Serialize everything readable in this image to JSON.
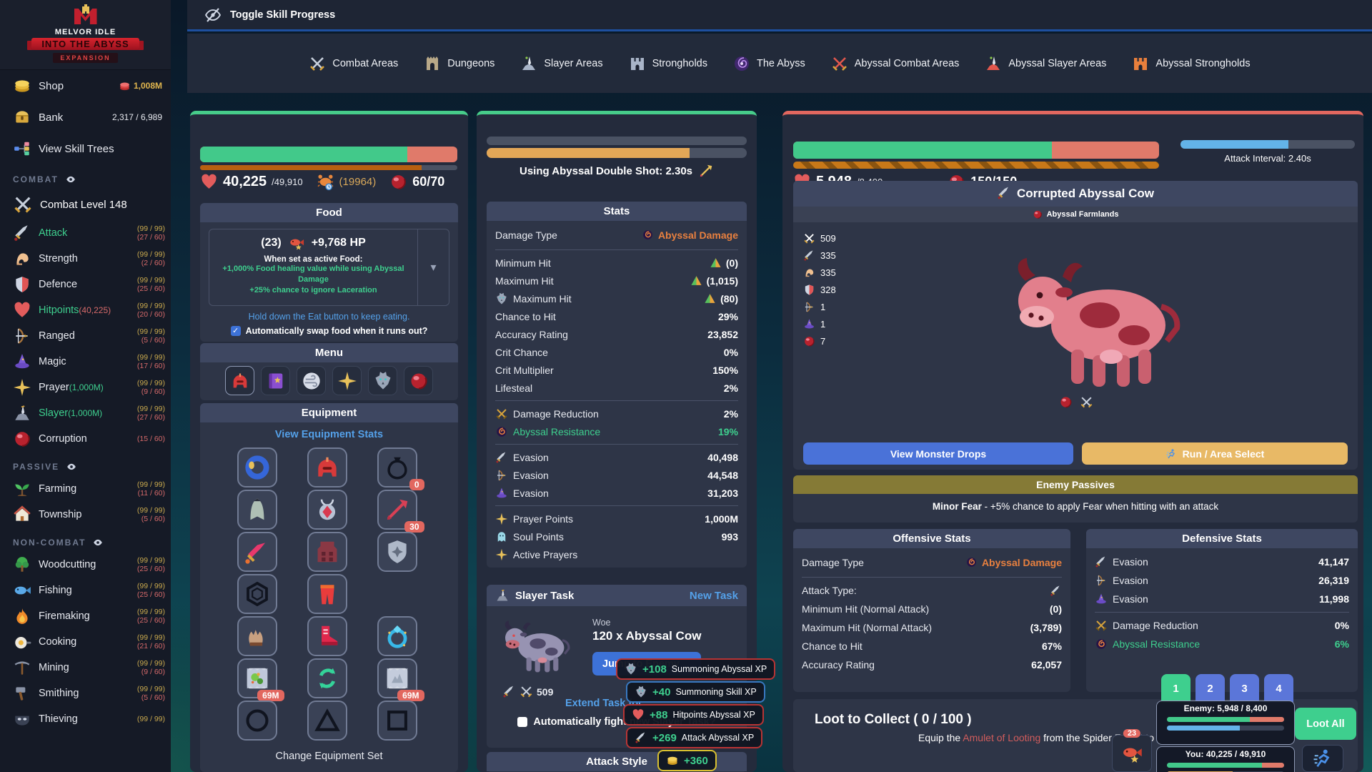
{
  "colors": {
    "accent_green": "#3ecf8e",
    "accent_red": "#e2675f",
    "accent_blue": "#5b76d9",
    "link_blue": "#54a0e8",
    "gold": "#c9a94e",
    "abyssal_orange": "#e8803f"
  },
  "topbar": {
    "toggle_label": "Toggle Skill Progress"
  },
  "nav": {
    "items": [
      {
        "icon": "i-swords",
        "cls": "c-silver",
        "label": "Combat Areas"
      },
      {
        "icon": "i-dungeon",
        "cls": "c-tan",
        "label": "Dungeons"
      },
      {
        "icon": "i-slayerarea",
        "cls": "c-steel",
        "label": "Slayer Areas"
      },
      {
        "icon": "i-castle",
        "cls": "c-steel",
        "label": "Strongholds"
      },
      {
        "icon": "i-vortex",
        "cls": "c-steel",
        "label": "The Abyss"
      },
      {
        "icon": "i-swords",
        "cls": "c-red",
        "label": "Abyssal Combat Areas"
      },
      {
        "icon": "i-slayerarea",
        "cls": "c-red",
        "label": "Abyssal Slayer Areas"
      },
      {
        "icon": "i-castle",
        "cls": "c-orange",
        "label": "Abyssal Strongholds"
      }
    ]
  },
  "sidebar": {
    "logo": {
      "title": "MELVOR IDLE",
      "banner": "INTO THE ABYSS",
      "badge": "EXPANSION"
    },
    "shop": {
      "label": "Shop",
      "value": "1,008M"
    },
    "bank": {
      "label": "Bank",
      "value": "2,317 / 6,989"
    },
    "skill_trees": {
      "label": "View Skill Trees"
    },
    "combat_header": "COMBAT",
    "combat_level": "Combat Level 148",
    "combat_items": [
      {
        "icon": "i-sword",
        "label": "Attack",
        "label_cls": "grn-t",
        "suffix": "",
        "suffix_cls": "",
        "lv": "(99 / 99)",
        "sub": "(27 / 60)"
      },
      {
        "icon": "i-muscle",
        "label": "Strength",
        "label_cls": "",
        "suffix": "",
        "suffix_cls": "",
        "lv": "(99 / 99)",
        "sub": "(2 / 60)"
      },
      {
        "icon": "i-shield",
        "label": "Defence",
        "label_cls": "",
        "suffix": "",
        "suffix_cls": "",
        "lv": "(99 / 99)",
        "sub": "(25 / 60)"
      },
      {
        "icon": "i-heart",
        "label": "Hitpoints",
        "label_cls": "grn-t",
        "suffix": "(40,225)",
        "suffix_cls": "red",
        "lv": "(99 / 99)",
        "sub": "(20 / 60)"
      },
      {
        "icon": "i-bow",
        "label": "Ranged",
        "label_cls": "",
        "suffix": "",
        "suffix_cls": "",
        "lv": "(99 / 99)",
        "sub": "(5 / 60)"
      },
      {
        "icon": "i-hat",
        "label": "Magic",
        "label_cls": "",
        "suffix": "",
        "suffix_cls": "",
        "lv": "(99 / 99)",
        "sub": "(17 / 60)"
      },
      {
        "icon": "i-star4",
        "label": "Prayer",
        "label_cls": "",
        "suffix": "(1,000M)",
        "suffix_cls": "grn",
        "lv": "(99 / 99)",
        "sub": "(9 / 60)"
      },
      {
        "icon": "i-slayer",
        "label": "Slayer",
        "label_cls": "grn-t",
        "suffix": "(1,000M)",
        "suffix_cls": "grn",
        "lv": "(99 / 99)",
        "sub": "(27 / 60)"
      },
      {
        "icon": "i-orb",
        "label": "Corruption",
        "label_cls": "",
        "suffix": "",
        "suffix_cls": "",
        "lv": "",
        "sub": "(15 / 60)"
      }
    ],
    "passive_header": "PASSIVE",
    "passive_items": [
      {
        "icon": "i-sprout",
        "label": "Farming",
        "label_cls": "",
        "suffix": "",
        "suffix_cls": "",
        "lv": "(99 / 99)",
        "sub": "(11 / 60)"
      },
      {
        "icon": "i-house",
        "label": "Township",
        "label_cls": "",
        "suffix": "",
        "suffix_cls": "",
        "lv": "(99 / 99)",
        "sub": "(5 / 60)"
      }
    ],
    "noncombat_header": "NON-COMBAT",
    "noncombat_items": [
      {
        "icon": "i-tree",
        "label": "Woodcutting",
        "label_cls": "",
        "suffix": "",
        "suffix_cls": "",
        "lv": "(99 / 99)",
        "sub": "(25 / 60)"
      },
      {
        "icon": "i-fishb",
        "label": "Fishing",
        "label_cls": "",
        "suffix": "",
        "suffix_cls": "",
        "lv": "(99 / 99)",
        "sub": "(25 / 60)"
      },
      {
        "icon": "i-flame",
        "label": "Firemaking",
        "label_cls": "",
        "suffix": "",
        "suffix_cls": "",
        "lv": "(99 / 99)",
        "sub": "(25 / 60)"
      },
      {
        "icon": "i-pan",
        "label": "Cooking",
        "label_cls": "",
        "suffix": "",
        "suffix_cls": "",
        "lv": "(99 / 99)",
        "sub": "(21 / 60)"
      },
      {
        "icon": "i-pick",
        "label": "Mining",
        "label_cls": "",
        "suffix": "",
        "suffix_cls": "",
        "lv": "(99 / 99)",
        "sub": "(9 / 60)"
      },
      {
        "icon": "i-hammer",
        "label": "Smithing",
        "label_cls": "",
        "suffix": "",
        "suffix_cls": "",
        "lv": "(99 / 99)",
        "sub": "(5 / 60)"
      },
      {
        "icon": "i-mask",
        "label": "Thieving",
        "label_cls": "",
        "suffix": "",
        "suffix_cls": "",
        "lv": "(99 / 99)",
        "sub": ""
      }
    ]
  },
  "player": {
    "hp": "40,225",
    "hp_max": "/49,910",
    "summon": "(19964)",
    "corruption": "60/70",
    "food": {
      "header": "Food",
      "count": "(23)",
      "heal": "+9,768 HP",
      "active_title": "When set as active Food:",
      "bonus1": "+1,000% Food healing value while using Abyssal Damage",
      "bonus2": "+25% chance to ignore Laceration",
      "hint": "Hold down the Eat button to keep eating.",
      "auto_label": "Automatically swap food when it runs out?",
      "checkmark": "✓"
    },
    "menu": {
      "header": "Menu",
      "items": [
        {
          "icon": "i-helmet",
          "cls": "sel"
        },
        {
          "icon": "i-book",
          "cls": ""
        },
        {
          "icon": "i-wind",
          "cls": ""
        },
        {
          "icon": "i-star4",
          "cls": ""
        },
        {
          "icon": "i-wolf",
          "cls": ""
        },
        {
          "icon": "i-orb",
          "cls": ""
        }
      ]
    },
    "equipment": {
      "header": "Equipment",
      "stats_link": "View Equipment Stats",
      "change_set": "Change Equipment Set",
      "slots": [
        {
          "icon": "i-eqring",
          "badge": "",
          "cls": ""
        },
        {
          "icon": "i-helmet",
          "badge": "",
          "cls": ""
        },
        {
          "icon": "i-bag",
          "badge": "0",
          "cls": ""
        },
        {
          "icon": "i-cape",
          "badge": "",
          "cls": ""
        },
        {
          "icon": "i-amulet",
          "badge": "",
          "cls": ""
        },
        {
          "icon": "i-ammo",
          "badge": "30",
          "cls": ""
        },
        {
          "icon": "i-swordpink",
          "badge": "",
          "cls": ""
        },
        {
          "icon": "i-body",
          "badge": "",
          "cls": ""
        },
        {
          "icon": "i-shieldstar",
          "badge": "",
          "cls": ""
        },
        {
          "icon": "i-hex",
          "badge": "",
          "cls": ""
        },
        {
          "icon": "i-legs",
          "badge": "",
          "cls": ""
        },
        {
          "icon": "",
          "badge": "",
          "cls": "empty"
        },
        {
          "icon": "i-glove",
          "badge": "",
          "cls": ""
        },
        {
          "icon": "i-boots",
          "badge": "",
          "cls": ""
        },
        {
          "icon": "i-ringgem",
          "badge": "",
          "cls": ""
        },
        {
          "icon": "i-tabgreen",
          "badge": "69M",
          "cls": ""
        },
        {
          "icon": "i-recycle",
          "badge": "",
          "cls": ""
        },
        {
          "icon": "i-tabgray",
          "badge": "69M",
          "cls": ""
        },
        {
          "icon": "i-slotcircle",
          "badge": "",
          "cls": ""
        },
        {
          "icon": "i-slottri",
          "badge": "",
          "cls": ""
        },
        {
          "icon": "i-slotsq",
          "badge": "",
          "cls": ""
        }
      ]
    }
  },
  "middle": {
    "attack_text": "Using Abyssal Double Shot: 2.30s",
    "stats": {
      "header": "Stats",
      "damage_type_label": "Damage Type",
      "damage_type_value": "Abyssal Damage",
      "rows1": [
        {
          "icon": "",
          "label": "Minimum Hit",
          "vicon": "i-warn",
          "value": "(0)",
          "vcls": ""
        },
        {
          "icon": "",
          "label": "Maximum Hit",
          "vicon": "i-warn",
          "value": "(1,015)",
          "vcls": ""
        },
        {
          "icon": "i-wolf",
          "label": "Maximum Hit",
          "vicon": "i-warn",
          "value": "(80)",
          "vcls": ""
        },
        {
          "icon": "",
          "label": "Chance to Hit",
          "vicon": "",
          "value": "29%",
          "vcls": ""
        },
        {
          "icon": "",
          "label": "Accuracy Rating",
          "vicon": "",
          "value": "23,852",
          "vcls": ""
        },
        {
          "icon": "",
          "label": "Crit Chance",
          "vicon": "",
          "value": "0%",
          "vcls": ""
        },
        {
          "icon": "",
          "label": "Crit Multiplier",
          "vicon": "",
          "value": "150%",
          "vcls": ""
        },
        {
          "icon": "",
          "label": "Lifesteal",
          "vicon": "",
          "value": "2%",
          "vcls": ""
        }
      ],
      "rows2": [
        {
          "icon": "i-swordsgold",
          "label": "Damage Reduction",
          "vicon": "",
          "value": "2%",
          "vcls": "",
          "lcls": ""
        },
        {
          "icon": "i-aby",
          "label": "Abyssal Resistance",
          "vicon": "",
          "value": "19%",
          "vcls": "grn",
          "lcls": "grn"
        }
      ],
      "rows3": [
        {
          "icon": "i-sword",
          "label": "Evasion",
          "vicon": "",
          "value": "40,498",
          "vcls": ""
        },
        {
          "icon": "i-bow",
          "label": "Evasion",
          "vicon": "",
          "value": "44,548",
          "vcls": ""
        },
        {
          "icon": "i-hat",
          "label": "Evasion",
          "vicon": "",
          "value": "31,203",
          "vcls": ""
        }
      ],
      "rows4": [
        {
          "icon": "i-star4",
          "label": "Prayer Points",
          "vicon": "",
          "value": "1,000M",
          "vcls": ""
        },
        {
          "icon": "i-soul",
          "label": "Soul Points",
          "vicon": "",
          "value": "993",
          "vcls": ""
        },
        {
          "icon": "i-star4",
          "label": "Active Prayers",
          "vicon": "",
          "value": "",
          "vcls": ""
        }
      ]
    },
    "slayer": {
      "header": "Slayer Task",
      "new_task": "New Task",
      "tier": "Woe",
      "task": "120 x Abyssal Cow",
      "jump": "Jump to Enemy",
      "level": "509",
      "extend": "Extend Task for",
      "auto": "Automatically fight new Slayer Task?"
    },
    "attack_style_header": "Attack Style"
  },
  "xp_popups": [
    {
      "icon": "i-wolf",
      "amount": "+108",
      "label": "Summoning Abyssal XP",
      "cls": "red"
    },
    {
      "icon": "i-wolf",
      "amount": "+40",
      "label": "Summoning Skill XP",
      "cls": "blue"
    },
    {
      "icon": "i-heart",
      "amount": "+88",
      "label": "Hitpoints Abyssal XP",
      "cls": "red"
    },
    {
      "icon": "i-sword",
      "amount": "+269",
      "label": "Attack Abyssal XP",
      "cls": "red"
    },
    {
      "icon": "i-coin",
      "amount": "+360",
      "label": "",
      "cls": "yellow"
    }
  ],
  "enemy": {
    "hp": "5,948",
    "hp_max": "/8,400",
    "barrier": "150/150",
    "attack_interval": "Attack Interval: 2.40s",
    "name": "Corrupted Abyssal Cow",
    "area": "Abyssal Farmlands",
    "levels": [
      {
        "icon": "i-swords",
        "value": "509"
      },
      {
        "icon": "i-sword",
        "value": "335"
      },
      {
        "icon": "i-muscle",
        "value": "335"
      },
      {
        "icon": "i-shield",
        "value": "328"
      },
      {
        "icon": "i-bow",
        "value": "1"
      },
      {
        "icon": "i-hat",
        "value": "1"
      },
      {
        "icon": "i-orb",
        "value": "7"
      }
    ],
    "drops_btn": "View Monster Drops",
    "run_btn": "Run / Area Select",
    "passives": {
      "header": "Enemy Passives",
      "bold": "Minor Fear",
      "rest": " - +5% chance to apply Fear when hitting with an attack"
    },
    "offensive": {
      "header": "Offensive Stats",
      "damage_type_label": "Damage Type",
      "damage_type_value": "Abyssal Damage",
      "rows": [
        {
          "icon": "",
          "label": "Attack Type:",
          "vicon": "i-sword",
          "value": "",
          "vcls": ""
        },
        {
          "icon": "",
          "label": "Minimum Hit (Normal Attack)",
          "vicon": "",
          "value": "(0)",
          "vcls": ""
        },
        {
          "icon": "",
          "label": "Maximum Hit (Normal Attack)",
          "vicon": "",
          "value": "(3,789)",
          "vcls": ""
        },
        {
          "icon": "",
          "label": "Chance to Hit",
          "vicon": "",
          "value": "67%",
          "vcls": ""
        },
        {
          "icon": "",
          "label": "Accuracy Rating",
          "vicon": "",
          "value": "62,057",
          "vcls": ""
        }
      ]
    },
    "defensive": {
      "header": "Defensive Stats",
      "rows": [
        {
          "icon": "i-sword",
          "label": "Evasion",
          "vicon": "",
          "value": "41,147",
          "vcls": ""
        },
        {
          "icon": "i-bow",
          "label": "Evasion",
          "vicon": "",
          "value": "26,319",
          "vcls": ""
        },
        {
          "icon": "i-hat",
          "label": "Evasion",
          "vicon": "",
          "value": "11,998",
          "vcls": ""
        }
      ],
      "rows2": [
        {
          "icon": "i-swordsgold",
          "label": "Damage Reduction",
          "vicon": "",
          "value": "0%",
          "vcls": "",
          "lcls": ""
        },
        {
          "icon": "i-aby",
          "label": "Abyssal Resistance",
          "vicon": "",
          "value": "6%",
          "vcls": "grn",
          "lcls": "grn"
        }
      ]
    },
    "loot": {
      "title": "Loot to Collect ( 0 / 100 )",
      "loot_all": "Loot All",
      "hint_pre": "Equip the ",
      "hint_item": "Amulet of Looting",
      "hint_post": " from the Spider Forest to"
    },
    "eat_buttons": [
      {
        "label": "1",
        "cls": "g"
      },
      {
        "label": "2",
        "cls": "b"
      },
      {
        "label": "3",
        "cls": "b"
      },
      {
        "label": "4",
        "cls": "b"
      }
    ],
    "overlay": {
      "enemy_label": "Enemy: 5,948 / 8,400",
      "you_label": "You: 40,225 / 49,910",
      "food_badge": "23"
    }
  }
}
